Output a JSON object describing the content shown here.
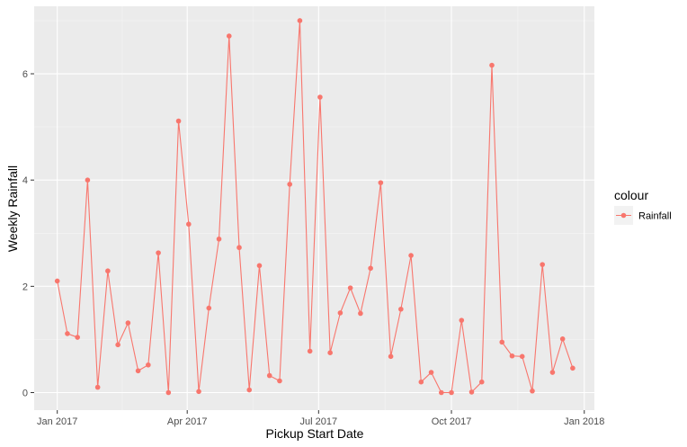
{
  "chart_data": {
    "type": "line",
    "xlabel": "Pickup Start Date",
    "ylabel": "Weekly Rainfall",
    "x_tick_labels": [
      "Jan 2017",
      "Apr 2017",
      "Jul 2017",
      "Oct 2017",
      "Jan 2018"
    ],
    "y_tick_labels": [
      "0",
      "2",
      "4",
      "6"
    ],
    "ylim": [
      -0.33,
      7.27
    ],
    "xlim": [
      "2016-12-16",
      "2018-01-08"
    ],
    "grid": true,
    "legend": {
      "title": "colour",
      "position": "right",
      "entries": [
        "Rainfall"
      ]
    },
    "colors": {
      "series": "#F8766D",
      "panel": "#EBEBEB",
      "grid_major": "#FFFFFF",
      "grid_minor": "#F5F5F5"
    },
    "series": [
      {
        "name": "Rainfall",
        "x": [
          "2017-01-01",
          "2017-01-08",
          "2017-01-15",
          "2017-01-22",
          "2017-01-29",
          "2017-02-05",
          "2017-02-12",
          "2017-02-19",
          "2017-02-26",
          "2017-03-05",
          "2017-03-12",
          "2017-03-19",
          "2017-03-26",
          "2017-04-02",
          "2017-04-09",
          "2017-04-16",
          "2017-04-23",
          "2017-04-30",
          "2017-05-07",
          "2017-05-14",
          "2017-05-21",
          "2017-05-28",
          "2017-06-04",
          "2017-06-11",
          "2017-06-18",
          "2017-06-25",
          "2017-07-02",
          "2017-07-09",
          "2017-07-16",
          "2017-07-23",
          "2017-07-30",
          "2017-08-06",
          "2017-08-13",
          "2017-08-20",
          "2017-08-27",
          "2017-09-03",
          "2017-09-10",
          "2017-09-17",
          "2017-09-24",
          "2017-10-01",
          "2017-10-08",
          "2017-10-15",
          "2017-10-22",
          "2017-10-29",
          "2017-11-05",
          "2017-11-12",
          "2017-11-19",
          "2017-11-26",
          "2017-12-03",
          "2017-12-10",
          "2017-12-17",
          "2017-12-24"
        ],
        "values": [
          2.1,
          1.11,
          1.04,
          4.0,
          0.1,
          2.29,
          0.9,
          1.31,
          0.41,
          0.52,
          2.63,
          0.0,
          5.11,
          3.17,
          0.02,
          1.59,
          2.89,
          6.71,
          2.73,
          0.05,
          2.39,
          0.32,
          0.22,
          3.92,
          7.0,
          0.78,
          5.56,
          0.75,
          1.5,
          1.97,
          1.49,
          2.34,
          3.95,
          0.68,
          1.57,
          2.58,
          0.2,
          0.38,
          0.0,
          0.0,
          1.36,
          0.01,
          0.2,
          6.16,
          0.95,
          0.69,
          0.68,
          0.03,
          2.41,
          0.38,
          1.01,
          0.46
        ]
      }
    ]
  }
}
